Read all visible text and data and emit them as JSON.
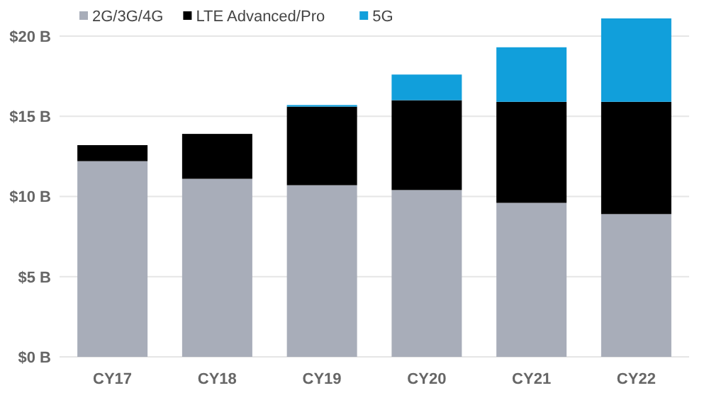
{
  "chart_data": {
    "type": "bar",
    "stacked": true,
    "categories": [
      "CY17",
      "CY18",
      "CY19",
      "CY20",
      "CY21",
      "CY22"
    ],
    "series": [
      {
        "name": "2G/3G/4G",
        "color": "#a8adb9",
        "values": [
          12.2,
          11.1,
          10.7,
          10.4,
          9.6,
          8.9
        ]
      },
      {
        "name": "LTE Advanced/Pro",
        "color": "#000000",
        "values": [
          1.0,
          2.8,
          4.9,
          5.6,
          6.3,
          7.0
        ]
      },
      {
        "name": "5G",
        "color": "#119fdb",
        "values": [
          0,
          0,
          0.1,
          1.6,
          3.4,
          5.2
        ]
      }
    ],
    "ylim": [
      0,
      21.1
    ],
    "yticks": [
      {
        "value": 0,
        "label": "$0 B"
      },
      {
        "value": 5,
        "label": "$5 B"
      },
      {
        "value": 10,
        "label": "$10 B"
      },
      {
        "value": 15,
        "label": "$15 B"
      },
      {
        "value": 20,
        "label": "$20 B"
      }
    ],
    "grid": "y",
    "legend": "top left"
  }
}
